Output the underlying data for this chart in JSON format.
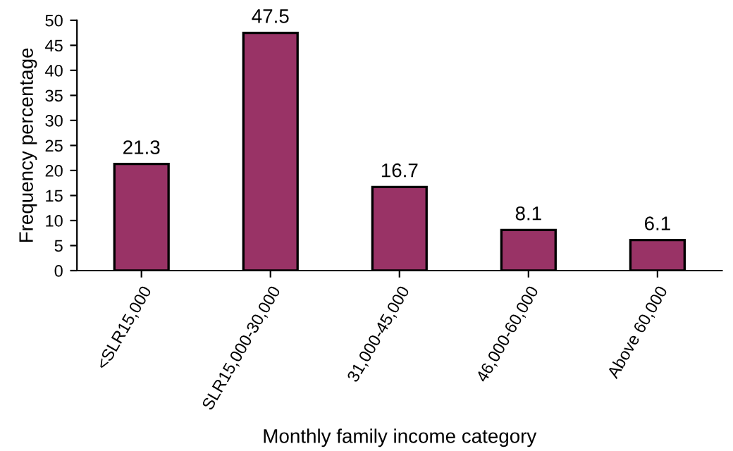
{
  "chart_data": {
    "type": "bar",
    "xlabel": "Monthly family income category",
    "ylabel": "Frequency percentage",
    "categories": [
      "<SLR15,000",
      "SLR15,000-30,000",
      "31,000-45,000",
      "46,000-60,000",
      "Above 60,000"
    ],
    "values": [
      21.3,
      47.5,
      16.7,
      8.1,
      6.1
    ],
    "color": "#993366",
    "ylim": [
      0,
      50
    ],
    "yticks": [
      0,
      5,
      10,
      15,
      20,
      25,
      30,
      35,
      40,
      45,
      50
    ],
    "grid": false,
    "data_labels": true
  }
}
